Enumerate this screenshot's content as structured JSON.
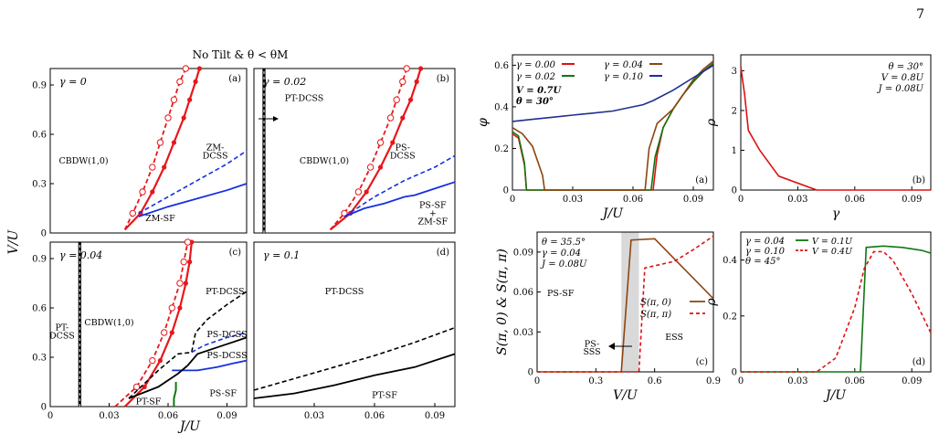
{
  "page_number": "7",
  "figure_title": "No Tilt & θ < θM",
  "chart_data": [
    {
      "id": "a",
      "type": "line",
      "panel_label": "(a)",
      "gamma_label": "γ = 0",
      "xlim": [
        0,
        0.1
      ],
      "ylim": [
        0,
        1
      ],
      "xticks": [],
      "yticks": [
        "0",
        "0.3",
        "0.6",
        "0.9"
      ],
      "ylabel": "V/U",
      "xlabel": "",
      "regions": [
        {
          "text": "CBDW(1,0)",
          "x": 0.017,
          "y": 0.44
        },
        {
          "text": "ZM-",
          "x": 0.084,
          "y": 0.52
        },
        {
          "text": "DCSS",
          "x": 0.084,
          "y": 0.47
        },
        {
          "text": "ZM-SF",
          "x": 0.056,
          "y": 0.09
        }
      ],
      "series": [
        {
          "style": "red-solid-dots",
          "x": [
            0.038,
            0.046,
            0.052,
            0.058,
            0.063,
            0.068,
            0.071,
            0.074,
            0.076
          ],
          "y": [
            0.02,
            0.12,
            0.25,
            0.4,
            0.55,
            0.7,
            0.81,
            0.92,
            1.0
          ]
        },
        {
          "style": "red-dashed-circles",
          "x": [
            0.038,
            0.042,
            0.047,
            0.052,
            0.056,
            0.06,
            0.063,
            0.066,
            0.069
          ],
          "y": [
            0.02,
            0.12,
            0.25,
            0.4,
            0.55,
            0.7,
            0.81,
            0.92,
            1.0
          ]
        },
        {
          "style": "blue-dashed",
          "x": [
            0.045,
            0.06,
            0.075,
            0.09,
            0.1
          ],
          "y": [
            0.12,
            0.22,
            0.32,
            0.42,
            0.5
          ]
        },
        {
          "style": "blue-solid",
          "x": [
            0.045,
            0.06,
            0.075,
            0.09,
            0.1
          ],
          "y": [
            0.1,
            0.16,
            0.21,
            0.26,
            0.3
          ]
        }
      ]
    },
    {
      "id": "b",
      "type": "line",
      "panel_label": "(b)",
      "gamma_label": "γ = 0.02",
      "xlim": [
        0,
        0.1
      ],
      "ylim": [
        0,
        1
      ],
      "xticks": [],
      "yticks": [],
      "ylabel": "",
      "xlabel": "",
      "regions": [
        {
          "text": "PT-DCSS",
          "x": 0.025,
          "y": 0.82
        },
        {
          "text": "CBDW(1,0)",
          "x": 0.035,
          "y": 0.44
        },
        {
          "text": "PS-",
          "x": 0.074,
          "y": 0.52
        },
        {
          "text": "DCSS",
          "x": 0.074,
          "y": 0.47
        },
        {
          "text": "PS-SF",
          "x": 0.089,
          "y": 0.17
        },
        {
          "text": "+",
          "x": 0.089,
          "y": 0.12
        },
        {
          "text": "ZM-SF",
          "x": 0.089,
          "y": 0.07
        }
      ],
      "series": [
        {
          "style": "black-double",
          "x": [
            0.005,
            0.005
          ],
          "y": [
            0,
            1
          ]
        },
        {
          "style": "red-solid-dots",
          "x": [
            0.038,
            0.048,
            0.056,
            0.063,
            0.069,
            0.074,
            0.078,
            0.081,
            0.083
          ],
          "y": [
            0.02,
            0.12,
            0.25,
            0.4,
            0.55,
            0.7,
            0.81,
            0.92,
            1.0
          ]
        },
        {
          "style": "red-dashed-circles",
          "x": [
            0.038,
            0.045,
            0.052,
            0.058,
            0.063,
            0.068,
            0.071,
            0.074,
            0.076
          ],
          "y": [
            0.02,
            0.12,
            0.25,
            0.4,
            0.55,
            0.7,
            0.81,
            0.92,
            1.0
          ]
        },
        {
          "style": "blue-dashed",
          "x": [
            0.045,
            0.06,
            0.075,
            0.09,
            0.1
          ],
          "y": [
            0.1,
            0.22,
            0.32,
            0.4,
            0.47
          ]
        },
        {
          "style": "blue-solid",
          "x": [
            0.045,
            0.055,
            0.065,
            0.075,
            0.08,
            0.09,
            0.1
          ],
          "y": [
            0.1,
            0.15,
            0.18,
            0.22,
            0.23,
            0.27,
            0.31
          ]
        }
      ]
    },
    {
      "id": "c",
      "type": "line",
      "panel_label": "(c)",
      "gamma_label": "γ = 0.04",
      "xlim": [
        0,
        0.1
      ],
      "ylim": [
        0,
        1
      ],
      "xticks": [
        "0",
        "0.03",
        "0.06",
        "0.09"
      ],
      "yticks": [
        "0",
        "0.3",
        "0.6",
        "0.9"
      ],
      "ylabel": "",
      "xlabel": "",
      "regions": [
        {
          "text": "PT-",
          "x": 0.006,
          "y": 0.48
        },
        {
          "text": "DCSS",
          "x": 0.006,
          "y": 0.43
        },
        {
          "text": "CBDW(1,0)",
          "x": 0.03,
          "y": 0.51
        },
        {
          "text": "PT-DCSS",
          "x": 0.089,
          "y": 0.7
        },
        {
          "text": "PS-DCSS",
          "x": 0.09,
          "y": 0.44
        },
        {
          "text": "PS-DCSS",
          "x": 0.09,
          "y": 0.31
        },
        {
          "text": "PT-SF",
          "x": 0.05,
          "y": 0.03
        },
        {
          "text": "PS-SF",
          "x": 0.088,
          "y": 0.08
        }
      ],
      "series": [
        {
          "style": "black-double",
          "x": [
            0.015,
            0.015
          ],
          "y": [
            0,
            1
          ]
        },
        {
          "style": "red-solid-dots",
          "x": [
            0.038,
            0.048,
            0.056,
            0.062,
            0.066,
            0.069,
            0.071,
            0.072
          ],
          "y": [
            0.0,
            0.12,
            0.28,
            0.45,
            0.6,
            0.75,
            0.88,
            1.0
          ]
        },
        {
          "style": "red-dashed-circles",
          "x": [
            0.033,
            0.044,
            0.052,
            0.058,
            0.062,
            0.066,
            0.068,
            0.07
          ],
          "y": [
            0.0,
            0.12,
            0.28,
            0.45,
            0.6,
            0.75,
            0.88,
            1.0
          ]
        },
        {
          "style": "black-dashed",
          "x": [
            0.04,
            0.055,
            0.065,
            0.072,
            0.074,
            0.08,
            0.09,
            0.1
          ],
          "y": [
            0.05,
            0.22,
            0.32,
            0.33,
            0.45,
            0.53,
            0.62,
            0.7
          ]
        },
        {
          "style": "blue-dashed",
          "x": [
            0.072,
            0.078,
            0.085,
            0.09,
            0.1
          ],
          "y": [
            0.33,
            0.37,
            0.4,
            0.42,
            0.45
          ]
        },
        {
          "style": "blue-solid",
          "x": [
            0.062,
            0.075,
            0.085,
            0.092,
            0.1
          ],
          "y": [
            0.22,
            0.22,
            0.24,
            0.26,
            0.28
          ]
        },
        {
          "style": "black-solid",
          "x": [
            0.04,
            0.055,
            0.065,
            0.07,
            0.075,
            0.085,
            0.1
          ],
          "y": [
            0.05,
            0.12,
            0.2,
            0.25,
            0.32,
            0.36,
            0.42
          ]
        },
        {
          "style": "green-solid",
          "x": [
            0.063,
            0.063,
            0.064,
            0.064
          ],
          "y": [
            0.0,
            0.05,
            0.1,
            0.15
          ]
        }
      ]
    },
    {
      "id": "d",
      "type": "line",
      "panel_label": "(d)",
      "gamma_label": "γ = 0.1",
      "xlim": [
        0,
        0.1
      ],
      "ylim": [
        0,
        1
      ],
      "xticks": [
        "0.03",
        "0.06",
        "0.09"
      ],
      "yticks": [],
      "ylabel": "",
      "xlabel": "J/U",
      "regions": [
        {
          "text": "PT-DCSS",
          "x": 0.045,
          "y": 0.7
        },
        {
          "text": "PT-SF",
          "x": 0.065,
          "y": 0.07
        }
      ],
      "series": [
        {
          "style": "black-dashed",
          "x": [
            0.0,
            0.02,
            0.04,
            0.06,
            0.08,
            0.1
          ],
          "y": [
            0.1,
            0.17,
            0.24,
            0.31,
            0.39,
            0.48
          ]
        },
        {
          "style": "black-solid",
          "x": [
            0.0,
            0.02,
            0.04,
            0.06,
            0.08,
            0.1
          ],
          "y": [
            0.05,
            0.08,
            0.13,
            0.19,
            0.24,
            0.32
          ]
        }
      ]
    },
    {
      "id": "ra",
      "type": "line",
      "panel_label": "(a)",
      "xlim": [
        0,
        0.1
      ],
      "ylim": [
        0,
        0.65
      ],
      "xticks": [
        "0",
        "0.03",
        "0.06",
        "0.09"
      ],
      "yticks": [
        "0",
        "0.2",
        "0.4",
        "0.6"
      ],
      "ylabel": "φ",
      "xlabel": "J/U",
      "legend": [
        "γ = 0.00",
        "γ = 0.04",
        "γ = 0.02",
        "γ = 0.10"
      ],
      "annotations": [
        "V = 0.7U",
        "θ = 30°"
      ],
      "series": [
        {
          "name": "γ = 0.00",
          "color": "#dd1111",
          "x": [
            0.0,
            0.003,
            0.006,
            0.007,
            0.07,
            0.072,
            0.075,
            0.08,
            0.085,
            0.09,
            0.095,
            0.1
          ],
          "y": [
            0.27,
            0.25,
            0.12,
            0.0,
            0.0,
            0.17,
            0.3,
            0.39,
            0.46,
            0.52,
            0.57,
            0.61
          ]
        },
        {
          "name": "γ = 0.02",
          "color": "#117711",
          "x": [
            0.0,
            0.003,
            0.006,
            0.007,
            0.069,
            0.071,
            0.075,
            0.08,
            0.085,
            0.09,
            0.095,
            0.1
          ],
          "y": [
            0.28,
            0.26,
            0.13,
            0.0,
            0.0,
            0.16,
            0.3,
            0.39,
            0.46,
            0.52,
            0.57,
            0.61
          ]
        },
        {
          "name": "γ = 0.04",
          "color": "#8b4513",
          "x": [
            0.0,
            0.005,
            0.01,
            0.015,
            0.016,
            0.066,
            0.068,
            0.072,
            0.08,
            0.085,
            0.09,
            0.095,
            0.1
          ],
          "y": [
            0.3,
            0.27,
            0.21,
            0.07,
            0.0,
            0.0,
            0.2,
            0.32,
            0.39,
            0.46,
            0.53,
            0.58,
            0.62
          ]
        },
        {
          "name": "γ = 0.10",
          "color": "#1f2f8f",
          "x": [
            0.0,
            0.01,
            0.02,
            0.03,
            0.04,
            0.05,
            0.06,
            0.065,
            0.07,
            0.08,
            0.09,
            0.1
          ],
          "y": [
            0.33,
            0.34,
            0.35,
            0.36,
            0.37,
            0.38,
            0.4,
            0.41,
            0.43,
            0.48,
            0.54,
            0.6
          ]
        }
      ]
    },
    {
      "id": "rb",
      "type": "line",
      "panel_label": "(b)",
      "xlim": [
        0,
        0.1
      ],
      "ylim": [
        0,
        3.4
      ],
      "xticks": [
        "0",
        "0.03",
        "0.06",
        "0.09"
      ],
      "yticks": [
        "0",
        "1",
        "2",
        "3"
      ],
      "ylabel": "ρ",
      "xlabel": "γ",
      "annotations": [
        "θ = 30°",
        "V = 0.8U",
        "J = 0.08U"
      ],
      "series": [
        {
          "color": "#dd1111",
          "x": [
            0.0,
            0.002,
            0.004,
            0.01,
            0.02,
            0.04,
            0.1
          ],
          "y": [
            3.1,
            2.4,
            1.5,
            1.0,
            0.35,
            0.0,
            0.0
          ]
        }
      ]
    },
    {
      "id": "rc",
      "type": "line",
      "panel_label": "(c)",
      "xlim": [
        0,
        0.9
      ],
      "ylim": [
        0,
        0.105
      ],
      "xticks": [
        "0",
        "0.3",
        "0.6",
        "0.9"
      ],
      "yticks": [
        "0",
        "0.03",
        "0.06",
        "0.09"
      ],
      "ylabel": "S(π, 0) & S(π, π)",
      "xlabel": "V/U",
      "annotations": [
        "θ = 35.5°",
        "γ = 0.04",
        "J = 0.08U"
      ],
      "regions": [
        {
          "text": "PS-SF",
          "x": 0.12,
          "y": 0.059
        },
        {
          "text": "PS-",
          "x": 0.28,
          "y": 0.021
        },
        {
          "text": "SSS",
          "x": 0.28,
          "y": 0.015
        },
        {
          "text": "ESS",
          "x": 0.7,
          "y": 0.026
        }
      ],
      "shaded_range": [
        0.43,
        0.52
      ],
      "legend": [
        "S(π, 0)",
        "S(π, π)"
      ],
      "series": [
        {
          "name": "S(π, 0)",
          "color": "#8b4513",
          "x": [
            0.0,
            0.43,
            0.48,
            0.6,
            0.9
          ],
          "y": [
            0.0,
            0.0,
            0.099,
            0.1,
            0.055
          ]
        },
        {
          "name": "S(π, π)",
          "color": "#dd1111",
          "dashed": true,
          "x": [
            0.0,
            0.52,
            0.55,
            0.7,
            0.8,
            0.9
          ],
          "y": [
            0.0,
            0.0,
            0.078,
            0.083,
            0.092,
            0.102
          ]
        }
      ]
    },
    {
      "id": "rd",
      "type": "line",
      "panel_label": "(d)",
      "xlim": [
        0,
        0.1
      ],
      "ylim": [
        0,
        0.5
      ],
      "xticks": [
        "0",
        "0.03",
        "0.06",
        "0.09"
      ],
      "yticks": [
        "0",
        "0.2",
        "0.4"
      ],
      "ylabel": "ρ",
      "xlabel": "J/U",
      "annotations": [
        "γ = 0.04",
        "γ = 0.10",
        "θ = 45°"
      ],
      "legend": [
        "V = 0.1U",
        "V = 0.4U"
      ],
      "series": [
        {
          "name": "V = 0.1U",
          "color": "#117711",
          "x": [
            0.0,
            0.063,
            0.066,
            0.075,
            0.085,
            0.095,
            0.1
          ],
          "y": [
            0.0,
            0.0,
            0.445,
            0.45,
            0.445,
            0.435,
            0.425
          ]
        },
        {
          "name": "V = 0.4U",
          "color": "#dd1111",
          "dashed": true,
          "x": [
            0.0,
            0.04,
            0.05,
            0.06,
            0.065,
            0.07,
            0.075,
            0.08,
            0.09,
            0.1
          ],
          "y": [
            0.0,
            0.0,
            0.05,
            0.23,
            0.37,
            0.43,
            0.43,
            0.4,
            0.28,
            0.14
          ]
        }
      ]
    }
  ]
}
